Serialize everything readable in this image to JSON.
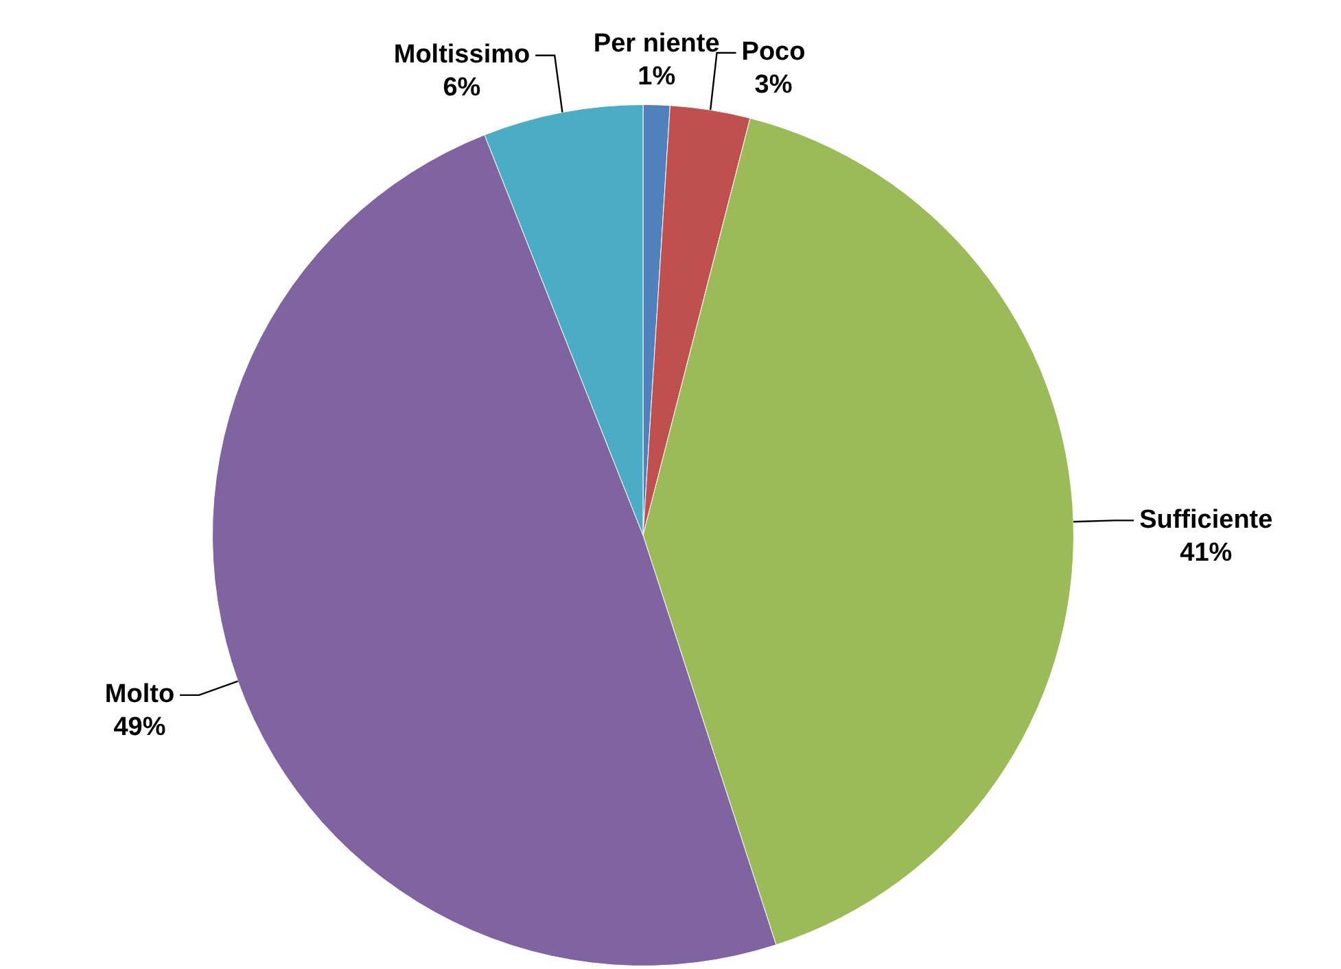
{
  "chart_data": {
    "type": "pie",
    "categories": [
      "Per niente",
      "Poco",
      "Sufficiente",
      "Molto",
      "Moltissimo"
    ],
    "values": [
      1,
      3,
      41,
      49,
      6
    ],
    "colors": [
      "#4f81bd",
      "#c0504d",
      "#9bbb59",
      "#8064a2",
      "#4bacc6"
    ],
    "value_labels": [
      "1%",
      "3%",
      "41%",
      "49%",
      "6%"
    ],
    "legend": false
  }
}
